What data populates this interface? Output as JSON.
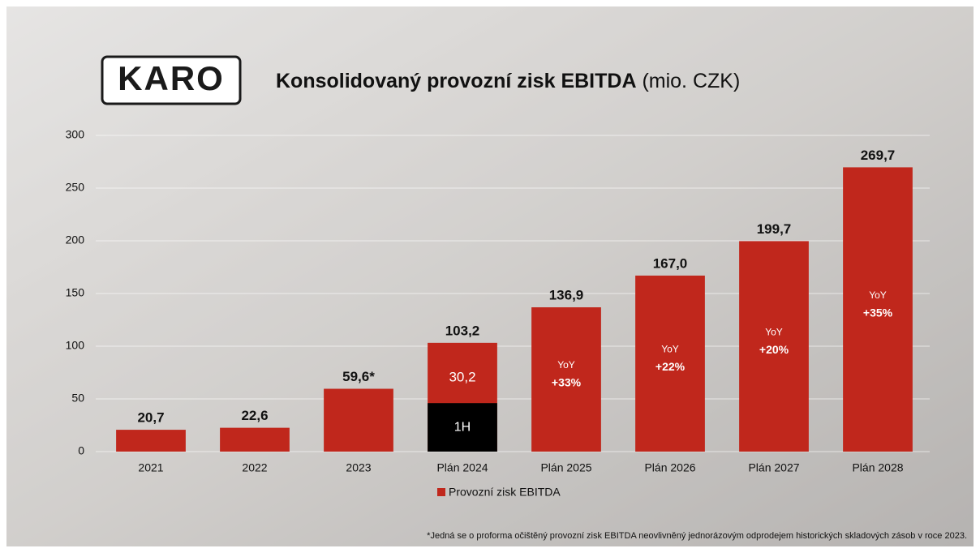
{
  "logo": "KARO",
  "footnote": "*Jedná se o proforma očištěný provozní zisk EBITDA neovlivněný jednorázovým odprodejem historických skladových zásob v roce 2023.",
  "chart_data": {
    "type": "bar",
    "title": "Konsolidovaný provozní zisk EBITDA",
    "title_unit": "(mio. CZK)",
    "categories": [
      "2021",
      "2022",
      "2023",
      "Plán 2024",
      "Plán 2025",
      "Plán 2026",
      "Plán 2027",
      "Plán 2028"
    ],
    "series": [
      {
        "name": "Provozní zisk EBITDA",
        "color": "#c0271c",
        "values": [
          20.7,
          22.6,
          59.6,
          103.2,
          136.9,
          167.0,
          199.7,
          269.7
        ],
        "value_labels": [
          "20,7",
          "22,6",
          "59,6*",
          "103,2",
          "136,9",
          "167,0",
          "199,7",
          "269,7"
        ]
      }
    ],
    "inner_labels": [
      null,
      null,
      null,
      [
        "30,2"
      ],
      [
        "YoY",
        "+33%"
      ],
      [
        "YoY",
        "+22%"
      ],
      [
        "YoY",
        "+20%"
      ],
      [
        "YoY",
        "+35%"
      ]
    ],
    "first_half": {
      "category": "Plán 2024",
      "label": "1H",
      "value": 46,
      "color": "#000000"
    },
    "ylim": [
      0,
      300
    ],
    "yticks": [
      0,
      50,
      100,
      150,
      200,
      250,
      300
    ],
    "grid": true,
    "legend": "bottom"
  }
}
